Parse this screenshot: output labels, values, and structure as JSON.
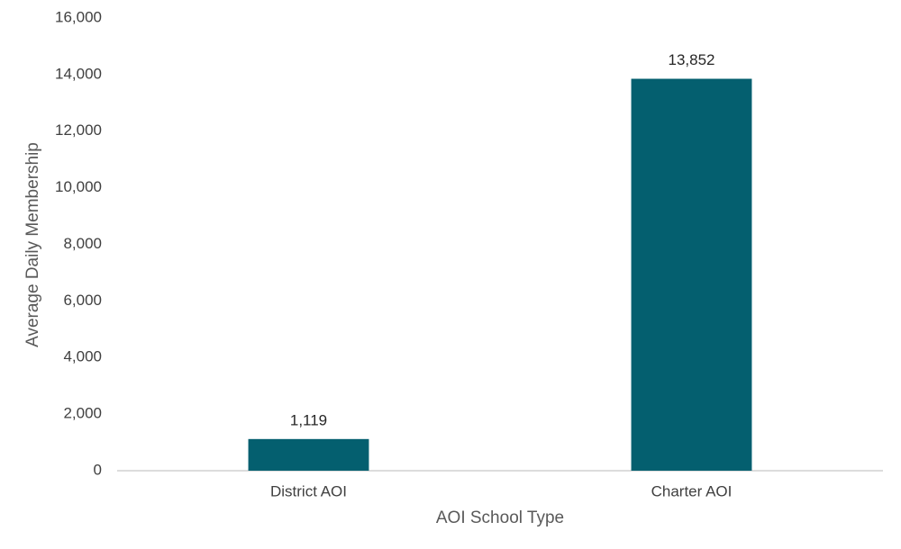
{
  "chart_data": {
    "type": "bar",
    "x_label": "AOI School Type",
    "y_label": "Average Daily Membership",
    "categories": [
      "District AOI",
      "Charter AOI"
    ],
    "values": [
      1119,
      13852
    ],
    "value_labels": [
      "1,119",
      "13,852"
    ],
    "color": "#045f6f",
    "ylim": [
      0,
      16000
    ],
    "yticks": [
      0,
      {
        "value": 2000,
        "label": "2,000"
      },
      {
        "value": 4000,
        "label": "4,000"
      },
      {
        "value": 6000,
        "label": "6,000"
      },
      {
        "value": 8000,
        "label": "8,000"
      },
      {
        "value": 10000,
        "label": "10,000"
      },
      {
        "value": 12000,
        "label": "12,000"
      },
      {
        "value": 14000,
        "label": "14,000"
      },
      {
        "value": 16000,
        "label": "16,000"
      }
    ],
    "grid": false
  }
}
